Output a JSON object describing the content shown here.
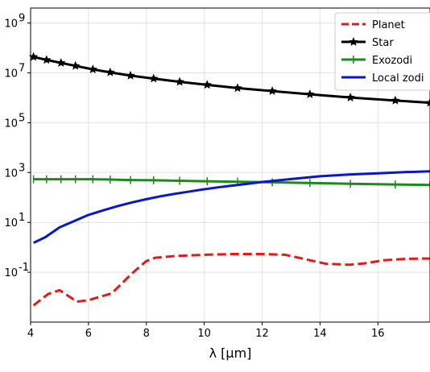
{
  "chart_data": {
    "type": "line",
    "xlabel": "λ [μm]",
    "ylabel": "",
    "xlim": [
      4.0,
      17.8
    ],
    "ylim_log10": [
      -3.0,
      9.6
    ],
    "yscale": "log",
    "grid": true,
    "legend_position": "top-right",
    "x_ticks": [
      4,
      6,
      8,
      10,
      12,
      14,
      16
    ],
    "y_ticks": [
      {
        "base": "10",
        "exp": "-1",
        "log": -1
      },
      {
        "base": "10",
        "exp": "1",
        "log": 1
      },
      {
        "base": "10",
        "exp": "3",
        "log": 3
      },
      {
        "base": "10",
        "exp": "5",
        "log": 5
      },
      {
        "base": "10",
        "exp": "7",
        "log": 7
      },
      {
        "base": "10",
        "exp": "9",
        "log": 9
      }
    ],
    "series": [
      {
        "name": "Planet",
        "color": "#e01b1b",
        "style": "dashed",
        "marker": "none",
        "x": [
          4.1,
          4.6,
          5.0,
          5.3,
          5.6,
          6.0,
          6.8,
          7.5,
          8.0,
          8.3,
          9.0,
          10.0,
          11.0,
          12.0,
          12.8,
          13.5,
          14.2,
          15.0,
          15.5,
          16.2,
          17.0,
          17.8
        ],
        "log_values": [
          -2.33,
          -1.88,
          -1.72,
          -1.95,
          -2.18,
          -2.12,
          -1.85,
          -1.05,
          -0.55,
          -0.42,
          -0.35,
          -0.3,
          -0.27,
          -0.27,
          -0.3,
          -0.48,
          -0.66,
          -0.7,
          -0.65,
          -0.52,
          -0.46,
          -0.45
        ]
      },
      {
        "name": "Star",
        "color": "#000000",
        "style": "solid",
        "marker": "star",
        "x": [
          4.1,
          4.55,
          5.05,
          5.55,
          6.15,
          6.75,
          7.45,
          8.25,
          9.15,
          10.1,
          11.15,
          12.35,
          13.65,
          15.05,
          16.6,
          17.8
        ],
        "log_values": [
          7.64,
          7.52,
          7.4,
          7.28,
          7.14,
          7.02,
          6.89,
          6.77,
          6.64,
          6.52,
          6.39,
          6.27,
          6.14,
          6.01,
          5.89,
          5.8
        ]
      },
      {
        "name": "Exozodi",
        "color": "#1c8a1c",
        "style": "solid",
        "marker": "plus",
        "x": [
          4.1,
          4.55,
          5.05,
          5.55,
          6.15,
          6.75,
          7.45,
          8.25,
          9.15,
          10.1,
          11.15,
          12.35,
          13.65,
          15.05,
          16.6,
          17.8
        ],
        "log_values": [
          2.73,
          2.73,
          2.73,
          2.73,
          2.73,
          2.72,
          2.7,
          2.69,
          2.67,
          2.65,
          2.63,
          2.61,
          2.58,
          2.55,
          2.52,
          2.5
        ]
      },
      {
        "name": "Local zodi",
        "color": "#0a16c9",
        "style": "solid",
        "marker": "none",
        "x": [
          4.1,
          4.5,
          5.0,
          5.5,
          6.0,
          6.5,
          7.0,
          7.5,
          8.0,
          8.5,
          9.0,
          9.5,
          10.0,
          10.5,
          11.0,
          11.5,
          12.0,
          13.0,
          14.0,
          15.0,
          16.0,
          17.0,
          17.8
        ],
        "log_values": [
          0.18,
          0.4,
          0.8,
          1.05,
          1.3,
          1.48,
          1.65,
          1.8,
          1.93,
          2.05,
          2.15,
          2.24,
          2.33,
          2.41,
          2.48,
          2.55,
          2.62,
          2.74,
          2.85,
          2.92,
          2.97,
          3.02,
          3.05
        ]
      }
    ]
  }
}
